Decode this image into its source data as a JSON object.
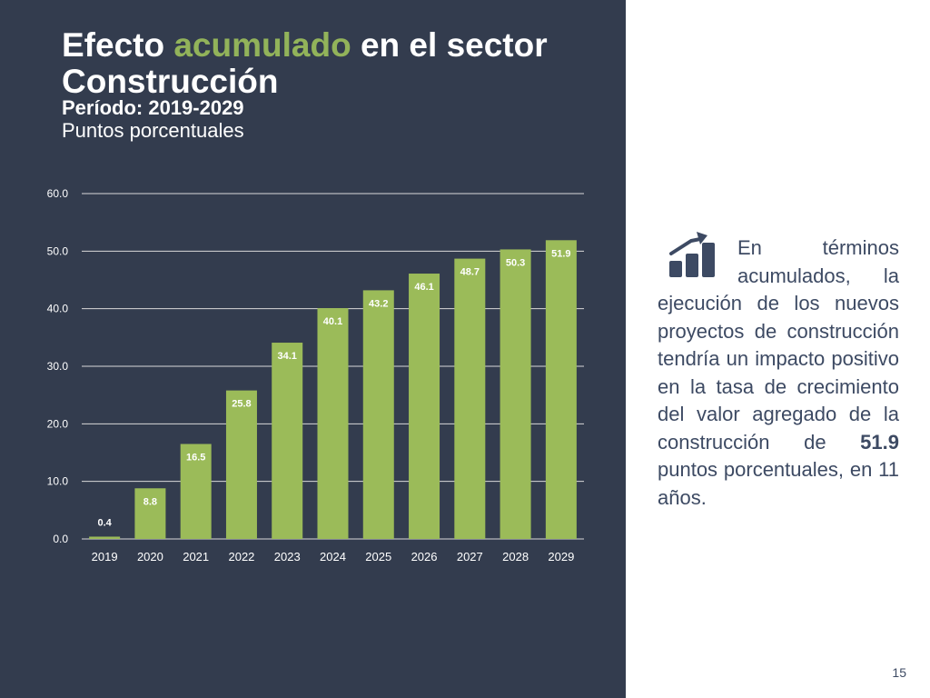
{
  "title": {
    "part1": "Efecto ",
    "accent": "acumulado",
    "part2": " en el sector Construcción",
    "period": "Período: 2019-2029",
    "units": "Puntos porcentuales"
  },
  "colors": {
    "panel_bg": "#333c4e",
    "accent_green": "#92b35a",
    "bar_fill": "#9bbb59",
    "text_blue": "#3d4a63"
  },
  "chart_data": {
    "type": "bar",
    "categories": [
      "2019",
      "2020",
      "2021",
      "2022",
      "2023",
      "2024",
      "2025",
      "2026",
      "2027",
      "2028",
      "2029"
    ],
    "values": [
      0.4,
      8.8,
      16.5,
      25.8,
      34.1,
      40.1,
      43.2,
      46.1,
      48.7,
      50.3,
      51.9
    ],
    "data_labels": [
      "0.4",
      "8.8",
      "16.5",
      "25.8",
      "34.1",
      "40.1",
      "43.2",
      "46.1",
      "48.7",
      "50.3",
      "51.9"
    ],
    "ylim": [
      0,
      60
    ],
    "yticks": [
      "0.0",
      "10.0",
      "20.0",
      "30.0",
      "40.0",
      "50.0",
      "60.0"
    ],
    "grid": true
  },
  "sidebar": {
    "icon": "bar-chart-growth-icon",
    "text_part1": "En términos acumulados, la ejecución de los nuevos proyectos de construcción tendría un impacto positivo en la tasa de crecimiento del valor agregado de la construcción de ",
    "text_bold": "51.9",
    "text_part2": " puntos porcentuales, en 11 años."
  },
  "page_number": "15"
}
